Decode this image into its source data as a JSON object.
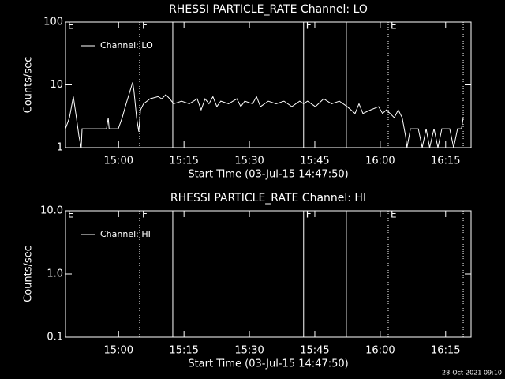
{
  "chart_data": [
    {
      "type": "line",
      "title": "RHESSI PARTICLE_RATE Channel: LO",
      "xlabel": "Start Time (03-Jul-15 14:47:50)",
      "ylabel": "Counts/sec",
      "log_y": true,
      "ylim": [
        1,
        100
      ],
      "yticks": [
        1,
        10,
        100
      ],
      "xlim": [
        0,
        93
      ],
      "xticks": [
        {
          "value": 12.17,
          "label": "15:00"
        },
        {
          "value": 27.17,
          "label": "15:15"
        },
        {
          "value": 42.17,
          "label": "15:30"
        },
        {
          "value": 57.17,
          "label": "15:45"
        },
        {
          "value": 72.17,
          "label": "16:00"
        },
        {
          "value": 87.17,
          "label": "16:15"
        }
      ],
      "vlines": [
        {
          "x": 17.0,
          "style": "dotted"
        },
        {
          "x": 24.6,
          "style": "solid"
        },
        {
          "x": 54.6,
          "style": "solid"
        },
        {
          "x": 64.4,
          "style": "solid"
        },
        {
          "x": 74.0,
          "style": "dotted"
        },
        {
          "x": 91.2,
          "style": "dotted"
        }
      ],
      "flags": [
        {
          "x": 0,
          "label": "E"
        },
        {
          "x": 17.0,
          "label": "F"
        },
        {
          "x": 54.6,
          "label": "F"
        },
        {
          "x": 74.0,
          "label": "E"
        }
      ],
      "legend": "upper left",
      "series": [
        {
          "name": "Channel: LO",
          "color": "#ffffff",
          "x": [
            0,
            0.9,
            1.8,
            2.5,
            3.1,
            3.6,
            3.8,
            4.5,
            6.7,
            9.4,
            9.8,
            10.0,
            12.1,
            13.0,
            13.9,
            14.8,
            15.4,
            15.7,
            16.3,
            16.8,
            17.2,
            17.9,
            19.4,
            21.2,
            22.1,
            23.0,
            23.9,
            24.8,
            26.6,
            28.4,
            30.2,
            31.1,
            32.0,
            32.9,
            33.8,
            34.7,
            35.6,
            37.4,
            39.3,
            40.2,
            41.1,
            42.9,
            43.8,
            44.7,
            46.5,
            48.3,
            50.1,
            51.9,
            53.7,
            54.6,
            55.5,
            57.3,
            59.2,
            61.0,
            62.8,
            64.6,
            66.4,
            67.3,
            68.2,
            70.0,
            71.8,
            72.7,
            73.6,
            75.4,
            76.3,
            77.2,
            78.0,
            78.3,
            79.1,
            80.9,
            81.8,
            82.7,
            83.5,
            84.5,
            85.4,
            86.3,
            88.1,
            89.0,
            89.9,
            90.8,
            91.2
          ],
          "values": [
            2,
            3,
            6.5,
            3,
            1.5,
            1,
            2,
            2,
            2,
            2,
            3,
            2,
            2,
            3,
            5,
            8,
            11,
            8,
            3,
            1.8,
            4,
            5,
            6,
            6.5,
            6,
            7,
            6,
            5,
            5.5,
            5,
            6,
            4,
            6,
            5,
            6.5,
            4.5,
            5.5,
            5,
            6,
            4.5,
            5.5,
            5,
            6.5,
            4.5,
            5.5,
            5,
            5.5,
            4.5,
            5.5,
            5,
            5.5,
            4.5,
            6,
            5,
            5.5,
            4.5,
            3.5,
            5,
            3.5,
            4,
            4.5,
            3.5,
            4,
            3,
            4,
            3,
            1.5,
            1,
            2,
            2,
            1,
            2,
            1,
            2,
            1,
            2,
            2,
            1,
            2,
            2,
            3
          ]
        }
      ]
    },
    {
      "type": "line",
      "title": "RHESSI PARTICLE_RATE Channel: HI",
      "xlabel": "Start Time (03-Jul-15 14:47:50)",
      "ylabel": "Counts/sec",
      "log_y": true,
      "ylim": [
        0.1,
        10
      ],
      "yticks": [
        0.1,
        {
          "value": 1,
          "label": "1.0"
        },
        {
          "value": 10,
          "label": "10.0"
        }
      ],
      "xlim": [
        0,
        93
      ],
      "xticks": [
        {
          "value": 12.17,
          "label": "15:00"
        },
        {
          "value": 27.17,
          "label": "15:15"
        },
        {
          "value": 42.17,
          "label": "15:30"
        },
        {
          "value": 57.17,
          "label": "15:45"
        },
        {
          "value": 72.17,
          "label": "16:00"
        },
        {
          "value": 87.17,
          "label": "16:15"
        }
      ],
      "vlines": [
        {
          "x": 17.0,
          "style": "dotted"
        },
        {
          "x": 24.6,
          "style": "solid"
        },
        {
          "x": 54.6,
          "style": "solid"
        },
        {
          "x": 64.4,
          "style": "solid"
        },
        {
          "x": 74.0,
          "style": "dotted"
        },
        {
          "x": 91.2,
          "style": "dotted"
        }
      ],
      "flags": [
        {
          "x": 0,
          "label": "E"
        },
        {
          "x": 17.0,
          "label": "F"
        },
        {
          "x": 54.6,
          "label": "F"
        },
        {
          "x": 74.0,
          "label": "E"
        }
      ],
      "legend": "upper left",
      "series": [
        {
          "name": "Channel: HI",
          "color": "#ffffff",
          "x": [],
          "values": []
        }
      ]
    }
  ],
  "footer": "28-Oct-2021 09:10"
}
